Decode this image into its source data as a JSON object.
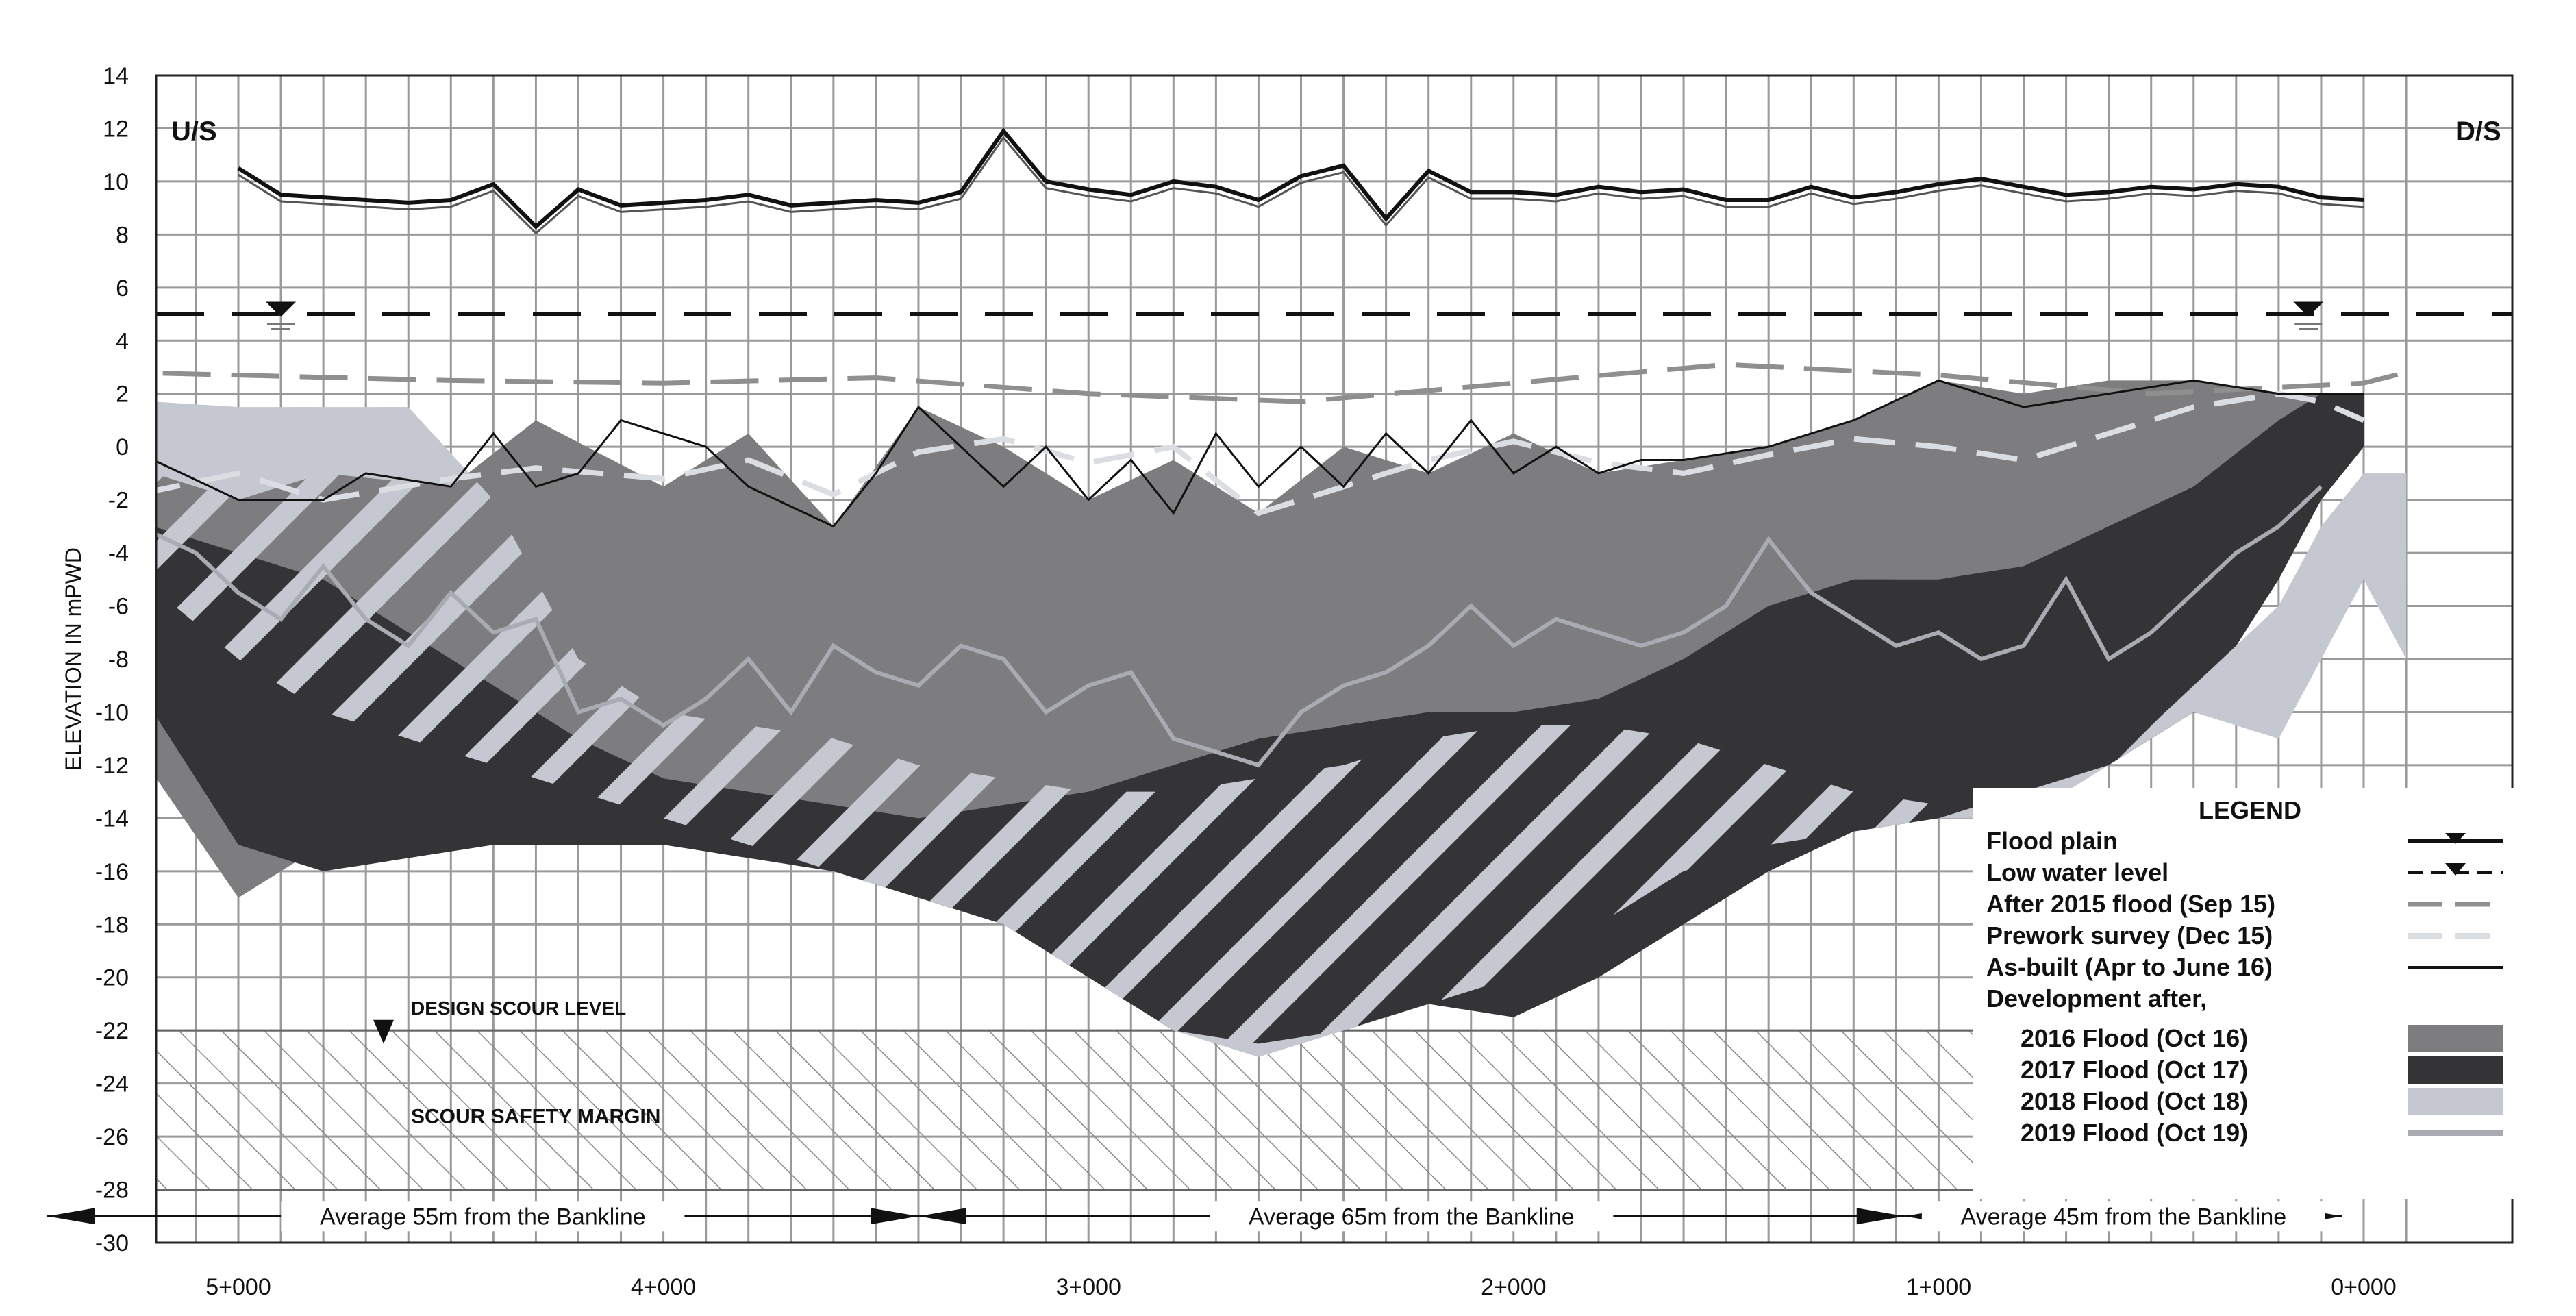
{
  "chart_data": {
    "type": "area",
    "ylabel": "ELEVATION IN mPWD",
    "ylim": [
      -30,
      14
    ],
    "yticks": [
      "14",
      "12",
      "10",
      "8",
      "6",
      "4",
      "2",
      "0",
      "-2",
      "-4",
      "-6",
      "-8",
      "-10",
      "-12",
      "-14",
      "-16",
      "-18",
      "-20",
      "-22",
      "-24",
      "-26",
      "-28",
      "-30"
    ],
    "xlim_km": [
      5.5,
      0.0
    ],
    "xticks": [
      {
        "label": "5+000",
        "km": 5.0
      },
      {
        "label": "4+000",
        "km": 4.0
      },
      {
        "label": "3+000",
        "km": 3.0
      },
      {
        "label": "2+000",
        "km": 2.0
      },
      {
        "label": "1+000",
        "km": 1.0
      },
      {
        "label": "0+000",
        "km": 0.0
      }
    ],
    "upstream_label": "U/S",
    "downstream_label": "D/S",
    "low_water_level": 5.0,
    "design_scour_level": -22,
    "design_scour_label": "DESIGN SCOUR LEVEL",
    "scour_margin_label": "SCOUR SAFETY MARGIN",
    "reaches": [
      {
        "label": "Average 55m  from  the Bankline",
        "from_km": 5.45,
        "to_km": 3.4
      },
      {
        "label": "Average 65m  from  the Bankline",
        "from_km": 3.4,
        "to_km": 1.08
      },
      {
        "label": "Average 45m  from  the Bankline",
        "from_km": 1.08,
        "to_km": 0.05
      }
    ],
    "legend": {
      "title": "LEGEND",
      "entries": [
        {
          "label": "Flood plain",
          "style": "flood-plain"
        },
        {
          "label": "Low water level",
          "style": "low-water"
        },
        {
          "label": "After 2015 flood (Sep 15)",
          "style": "after-2015"
        },
        {
          "label": "Prework survey (Dec 15)",
          "style": "prework"
        },
        {
          "label": "As-built (Apr to June 16)",
          "style": "asbuilt"
        },
        {
          "label": "Development after,",
          "style": "heading"
        },
        {
          "label": "2016 Flood (Oct 16)",
          "style": "fill-2016"
        },
        {
          "label": "2017 Flood (Oct 17)",
          "style": "fill-2017"
        },
        {
          "label": "2018 Flood (Oct 18)",
          "style": "fill-2018"
        },
        {
          "label": "2019 Flood (Oct 19)",
          "style": "line-2019"
        }
      ]
    },
    "colors": {
      "flood_2016": "#7d7d7f",
      "flood_2017": "#343436",
      "flood_2018": "#c5c8d0",
      "flood_2019": "#a9abb2",
      "after_2015": "#8f8f8f",
      "prework": "#dadde2",
      "grid": "#9a9a9a"
    },
    "series": [
      {
        "name": "Flood plain",
        "x": [
          5.0,
          4.9,
          4.8,
          4.6,
          4.5,
          4.4,
          4.3,
          4.2,
          4.1,
          4.0,
          3.9,
          3.8,
          3.7,
          3.6,
          3.5,
          3.4,
          3.3,
          3.2,
          3.1,
          3.0,
          2.9,
          2.8,
          2.7,
          2.6,
          2.5,
          2.4,
          2.3,
          2.2,
          2.1,
          2.0,
          1.9,
          1.8,
          1.7,
          1.6,
          1.5,
          1.4,
          1.3,
          1.2,
          1.1,
          1.0,
          0.9,
          0.8,
          0.7,
          0.6,
          0.5,
          0.4,
          0.3,
          0.2,
          0.1,
          0.0
        ],
        "y": [
          10.5,
          9.5,
          9.4,
          9.2,
          9.3,
          9.9,
          8.3,
          9.7,
          9.1,
          9.2,
          9.3,
          9.5,
          9.1,
          9.2,
          9.3,
          9.2,
          9.6,
          11.9,
          10.0,
          9.7,
          9.5,
          10.0,
          9.8,
          9.3,
          10.2,
          10.6,
          8.6,
          10.4,
          9.6,
          9.6,
          9.5,
          9.8,
          9.6,
          9.7,
          9.3,
          9.3,
          9.8,
          9.4,
          9.6,
          9.9,
          10.1,
          9.8,
          9.5,
          9.6,
          9.8,
          9.7,
          9.9,
          9.8,
          9.4,
          9.3
        ]
      },
      {
        "name": "After 2015 flood (Sep 15)",
        "x": [
          5.5,
          5.0,
          4.5,
          4.0,
          3.5,
          3.0,
          2.5,
          2.0,
          1.5,
          1.0,
          0.5,
          0.0,
          -0.1
        ],
        "y": [
          2.9,
          2.7,
          2.5,
          2.4,
          2.6,
          2.0,
          1.7,
          2.4,
          3.1,
          2.7,
          2.0,
          2.4,
          2.8
        ]
      },
      {
        "name": "Prework survey (Dec 15)",
        "x": [
          5.5,
          5.3,
          5.0,
          4.8,
          4.5,
          4.3,
          4.0,
          3.8,
          3.6,
          3.4,
          3.2,
          3.0,
          2.8,
          2.6,
          2.4,
          2.2,
          2.0,
          1.8,
          1.6,
          1.4,
          1.2,
          1.0,
          0.8,
          0.6,
          0.4,
          0.2,
          0.1,
          0.0
        ],
        "y": [
          -0.5,
          -2.0,
          -1.0,
          -2.0,
          -1.2,
          -0.8,
          -1.2,
          -0.5,
          -1.8,
          -0.2,
          0.3,
          -0.6,
          0.0,
          -2.5,
          -1.5,
          -0.5,
          0.2,
          -0.6,
          -1.0,
          -0.3,
          0.3,
          0.0,
          -0.5,
          0.5,
          1.5,
          2.0,
          1.7,
          1.0
        ]
      },
      {
        "name": "As-built (Apr to June 16)",
        "x": [
          5.5,
          5.4,
          5.2,
          5.0,
          4.8,
          4.7,
          4.5,
          4.4,
          4.3,
          4.2,
          4.1,
          4.0,
          3.9,
          3.8,
          3.6,
          3.5,
          3.4,
          3.3,
          3.2,
          3.1,
          3.0,
          2.9,
          2.8,
          2.7,
          2.6,
          2.5,
          2.4,
          2.3,
          2.2,
          2.1,
          2.0,
          1.9,
          1.8,
          1.7,
          1.6,
          1.4,
          1.2,
          1.0,
          0.8,
          0.6,
          0.4,
          0.2,
          0.0
        ],
        "y": [
          -2.0,
          -1.5,
          -0.5,
          -2.0,
          -2.0,
          -1.0,
          -1.5,
          0.5,
          -1.5,
          -1.0,
          1.0,
          0.5,
          0.0,
          -1.5,
          -3.0,
          -1.0,
          1.5,
          0.0,
          -1.5,
          0.0,
          -2.0,
          -0.5,
          -2.5,
          0.5,
          -1.5,
          0.0,
          -1.5,
          0.5,
          -1.0,
          1.0,
          -1.0,
          0.0,
          -1.0,
          -0.5,
          -0.5,
          0.0,
          1.0,
          2.5,
          1.5,
          2.0,
          2.5,
          2.0,
          2.0
        ]
      },
      {
        "name": "2016 Flood (Oct 16)",
        "type": "area",
        "x": [
          5.5,
          5.3,
          5.0,
          4.8,
          4.5,
          4.3,
          4.0,
          3.8,
          3.6,
          3.4,
          3.2,
          3.0,
          2.8,
          2.6,
          2.4,
          2.2,
          2.0,
          1.8,
          1.6,
          1.4,
          1.2,
          1.0,
          0.8,
          0.6,
          0.4,
          0.2,
          0.0
        ],
        "y_top": [
          -2.0,
          -0.5,
          -2.0,
          -1.0,
          -1.5,
          1.0,
          -1.5,
          0.5,
          -3.0,
          1.5,
          0.0,
          -2.0,
          -0.5,
          -2.5,
          0.0,
          -1.0,
          0.5,
          -1.0,
          -0.5,
          0.0,
          1.0,
          2.5,
          2.0,
          2.5,
          2.5,
          2.0,
          2.0
        ],
        "y_bottom": [
          -4.0,
          -10.0,
          -17.0,
          -15.0,
          -14.5,
          -14.0,
          -14.0,
          -15.0,
          -15.0,
          -14.0,
          -14.0,
          -14.0,
          -12.0,
          -11.0,
          -10.5,
          -10.0,
          -10.0,
          -10.0,
          -9.0,
          -8.5,
          -8.0,
          -6.5,
          -6.0,
          -4.5,
          -2.0,
          -1.0,
          0.0
        ]
      },
      {
        "name": "2017 Flood (Oct 17)",
        "type": "area",
        "x": [
          5.5,
          5.2,
          5.0,
          4.8,
          4.6,
          4.4,
          4.2,
          4.0,
          3.8,
          3.6,
          3.4,
          3.2,
          3.0,
          2.8,
          2.6,
          2.4,
          2.2,
          2.0,
          1.8,
          1.6,
          1.4,
          1.2,
          1.0,
          0.8,
          0.6,
          0.4,
          0.2,
          0.1,
          0.0
        ],
        "y_top": [
          -3.0,
          -3.0,
          -4.0,
          -5.0,
          -7.0,
          -9.0,
          -11.0,
          -12.5,
          -13.0,
          -13.5,
          -14.0,
          -13.5,
          -13.0,
          -12.0,
          -11.0,
          -10.5,
          -10.0,
          -10.0,
          -9.5,
          -8.0,
          -6.0,
          -5.0,
          -5.0,
          -4.5,
          -3.0,
          -1.5,
          1.0,
          2.0,
          2.0
        ],
        "y_bottom": [
          -4.0,
          -10.0,
          -15.0,
          -16.0,
          -15.5,
          -15.0,
          -15.0,
          -15.0,
          -15.5,
          -16.0,
          -17.0,
          -18.0,
          -20.0,
          -22.0,
          -22.5,
          -22.0,
          -21.0,
          -21.5,
          -20.0,
          -18.0,
          -16.0,
          -14.5,
          -14.0,
          -13.0,
          -12.0,
          -10.0,
          -5.0,
          -2.0,
          0.0
        ]
      },
      {
        "name": "2018 Flood (Oct 18)",
        "type": "area",
        "x": [
          5.5,
          5.3,
          5.0,
          4.8,
          4.6,
          4.4,
          4.2,
          4.0,
          3.8,
          3.6,
          3.4,
          3.2,
          3.0,
          2.8,
          2.6,
          2.4,
          2.2,
          2.0,
          1.8,
          1.6,
          1.4,
          1.2,
          1.0,
          0.8,
          0.6,
          0.4,
          0.2,
          0.1,
          0.0,
          -0.1
        ],
        "y_top": [
          2.0,
          1.8,
          1.5,
          1.5,
          1.5,
          -2.0,
          -8.0,
          -10.0,
          -10.5,
          -11.0,
          -12.0,
          -12.5,
          -13.0,
          -13.0,
          -12.5,
          -12.0,
          -11.0,
          -10.5,
          -10.5,
          -11.0,
          -12.0,
          -13.0,
          -13.5,
          -13.0,
          -12.0,
          -9.0,
          -6.0,
          -3.0,
          -1.0,
          -1.0
        ],
        "y_bottom": [
          -1.0,
          -4.0,
          -8.0,
          -10.0,
          -11.0,
          -12.0,
          -13.0,
          -14.0,
          -15.0,
          -16.0,
          -17.0,
          -18.0,
          -20.0,
          -22.0,
          -23.0,
          -22.0,
          -21.0,
          -20.0,
          -18.0,
          -16.0,
          -15.0,
          -14.5,
          -14.0,
          -14.0,
          -12.0,
          -10.0,
          -11.0,
          -8.0,
          -5.0,
          -8.0
        ]
      },
      {
        "name": "2019 Flood (Oct 19)",
        "x": [
          5.5,
          5.3,
          5.1,
          5.0,
          4.9,
          4.8,
          4.7,
          4.6,
          4.5,
          4.4,
          4.3,
          4.2,
          4.1,
          4.0,
          3.9,
          3.8,
          3.7,
          3.6,
          3.5,
          3.4,
          3.3,
          3.2,
          3.1,
          3.0,
          2.9,
          2.8,
          2.7,
          2.6,
          2.5,
          2.4,
          2.3,
          2.2,
          2.1,
          2.0,
          1.9,
          1.8,
          1.7,
          1.6,
          1.5,
          1.4,
          1.3,
          1.2,
          1.1,
          1.0,
          0.9,
          0.8,
          0.7,
          0.6,
          0.5,
          0.4,
          0.3,
          0.2,
          0.1
        ],
        "y": [
          -1.0,
          -2.5,
          -4.0,
          -5.5,
          -6.5,
          -4.5,
          -6.5,
          -7.5,
          -5.5,
          -7.0,
          -6.5,
          -10.0,
          -9.5,
          -10.5,
          -9.5,
          -8.0,
          -10.0,
          -7.5,
          -8.5,
          -9.0,
          -7.5,
          -8.0,
          -10.0,
          -9.0,
          -8.5,
          -11.0,
          -11.5,
          -12.0,
          -10.0,
          -9.0,
          -8.5,
          -7.5,
          -6.0,
          -7.5,
          -6.5,
          -7.0,
          -7.5,
          -7.0,
          -6.0,
          -3.5,
          -5.5,
          -6.5,
          -7.5,
          -7.0,
          -8.0,
          -7.5,
          -5.0,
          -8.0,
          -7.0,
          -5.5,
          -4.0,
          -3.0,
          -1.5
        ]
      }
    ]
  }
}
